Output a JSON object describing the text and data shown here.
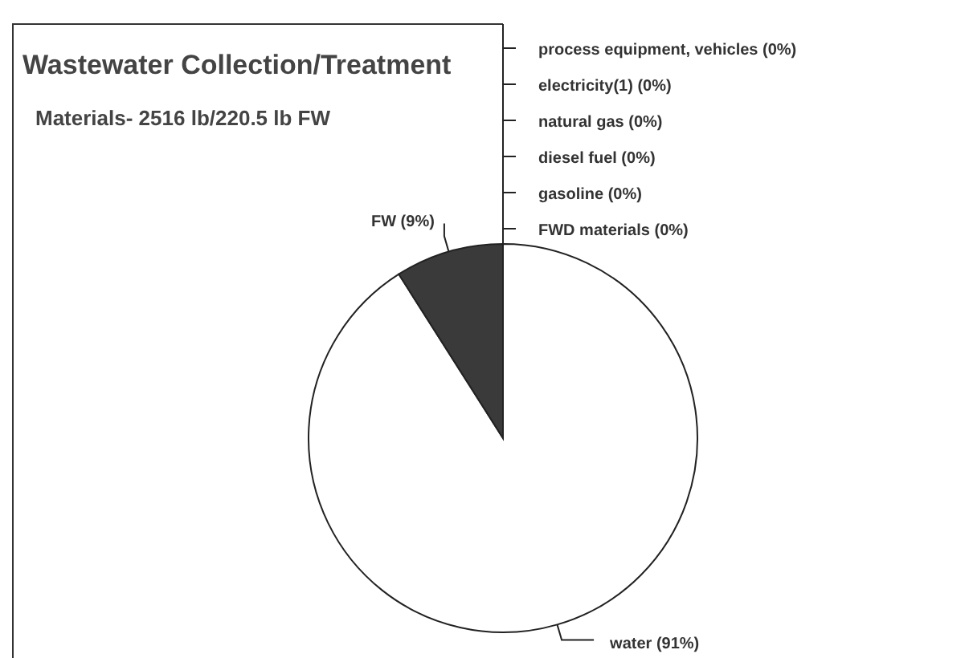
{
  "chart_data": {
    "type": "pie",
    "title": "Wastewater Collection/Treatment",
    "subtitle": "Materials- 2516 lb/220.5 lb FW",
    "categories": [
      "process equipment, vehicles (0%)",
      "electricity(1) (0%)",
      "natural gas (0%)",
      "diesel fuel (0%)",
      "gasoline (0%)",
      "FWD materials (0%)",
      "water (91%)",
      "FW (9%)"
    ],
    "values": [
      0,
      0,
      0,
      0,
      0,
      0,
      91,
      9
    ],
    "colors": [
      "#ffffff",
      "#ffffff",
      "#ffffff",
      "#ffffff",
      "#ffffff",
      "#ffffff",
      "#ffffff",
      "#3a3a3a"
    ]
  }
}
